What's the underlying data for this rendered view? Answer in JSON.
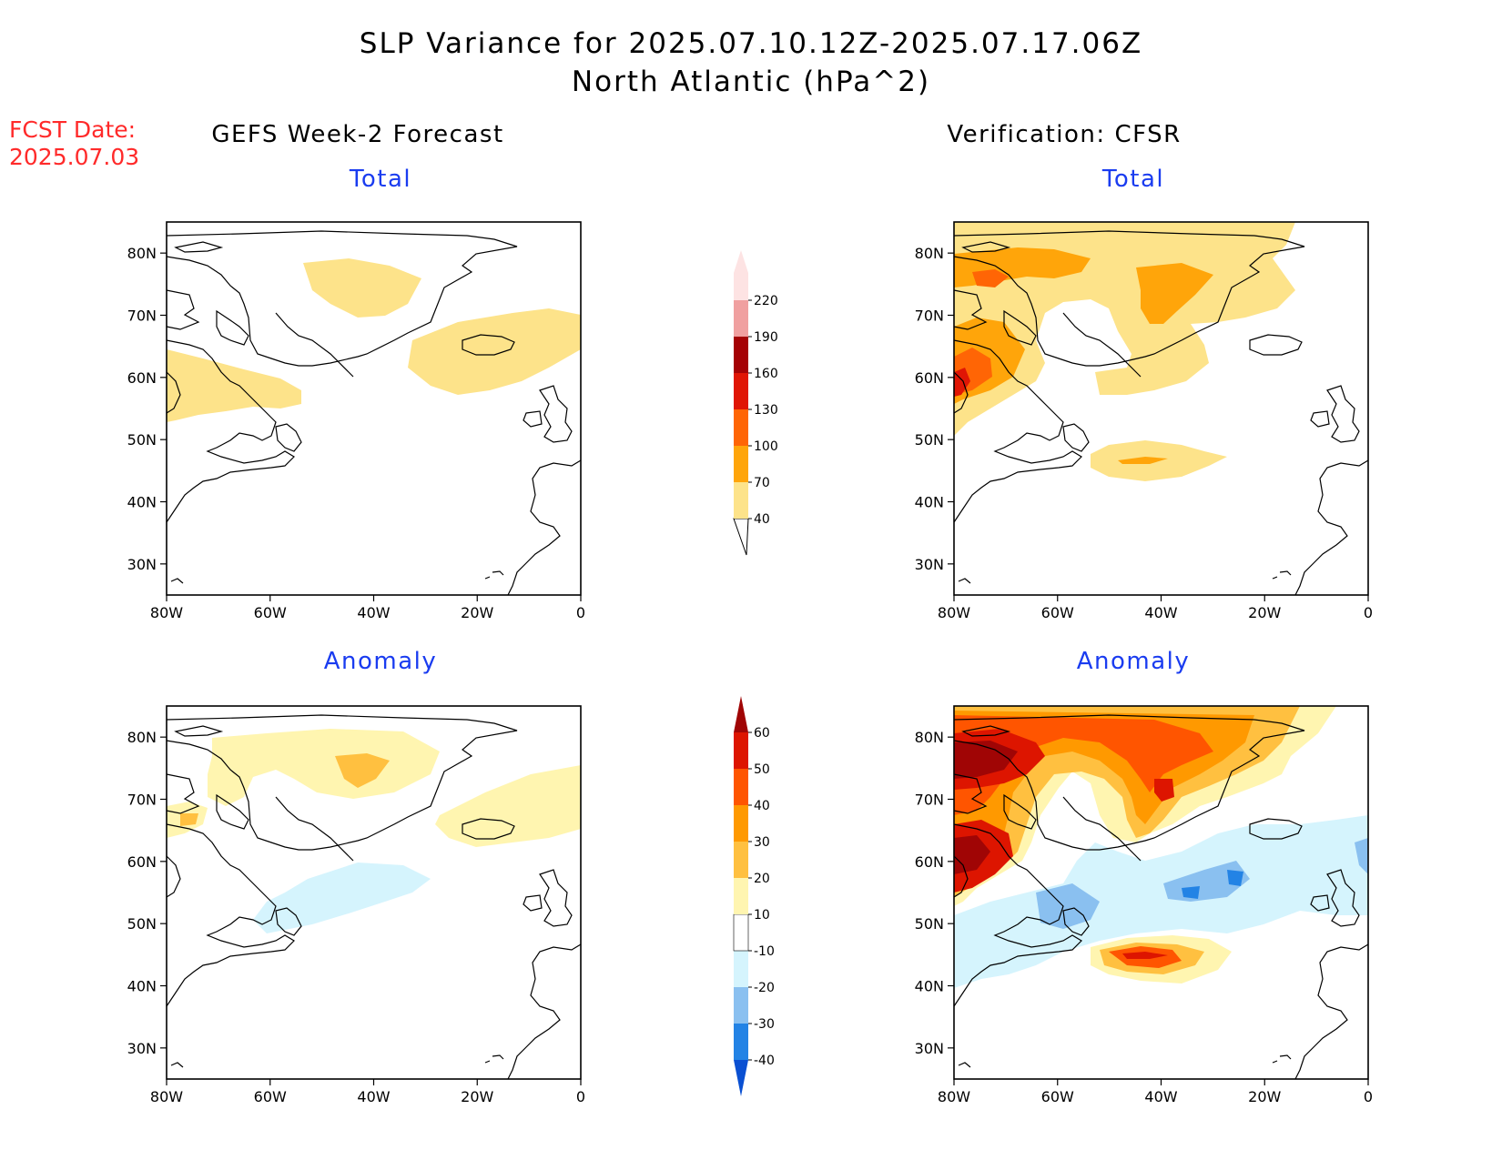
{
  "header": {
    "title_line1": "SLP Variance for 2025.07.10.12Z-2025.07.17.06Z",
    "title_line2": "North Atlantic (hPa^2)"
  },
  "fcst": {
    "label": "FCST Date:",
    "date": "2025.07.03"
  },
  "columns": {
    "left": "GEFS Week-2 Forecast",
    "right": "Verification: CFSR"
  },
  "panels": {
    "top_left": "Total",
    "top_right": "Total",
    "bottom_left": "Anomaly",
    "bottom_right": "Anomaly"
  },
  "axes": {
    "lat_labels": [
      "80N",
      "70N",
      "60N",
      "50N",
      "40N",
      "30N"
    ],
    "lon_labels": [
      "80W",
      "60W",
      "40W",
      "20W",
      "0"
    ]
  },
  "colorbar_total": {
    "levels": [
      "40",
      "70",
      "100",
      "130",
      "160",
      "190",
      "220"
    ],
    "colors": [
      "#fde38a",
      "#ffa50a",
      "#ff6505",
      "#e01605",
      "#a50205",
      "#f0a0a0",
      "#fde3e3"
    ]
  },
  "colorbar_anomaly": {
    "levels": [
      "-40",
      "-30",
      "-20",
      "-10",
      "10",
      "20",
      "30",
      "40",
      "50",
      "60"
    ],
    "colors": [
      "#0a50d2",
      "#2383e5",
      "#8ac0f0",
      "#d5f4fd",
      "#ffffff",
      "#fff5b0",
      "#ffc040",
      "#ff9900",
      "#ff5500",
      "#dd1500",
      "#a00505"
    ]
  }
}
